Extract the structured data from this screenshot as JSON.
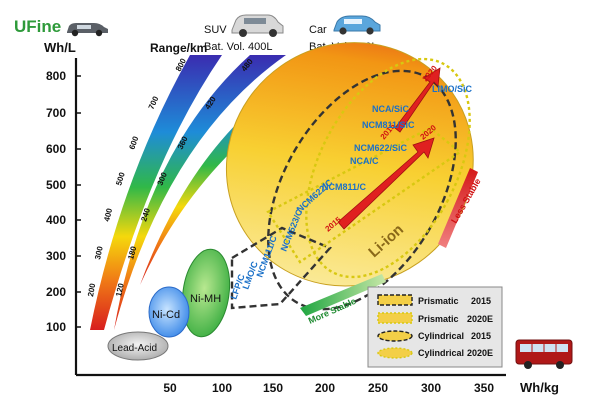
{
  "brand": {
    "logo_text": "UFine"
  },
  "axes": {
    "y_unit": "Wh/L",
    "x_unit": "Wh/kg",
    "y_ticks": [
      "800",
      "700",
      "600",
      "500",
      "400",
      "300",
      "200",
      "100"
    ],
    "x_ticks": [
      "50",
      "100",
      "150",
      "200",
      "250",
      "300",
      "350"
    ]
  },
  "header": {
    "range_label": "Range/km",
    "suv_label": "SUV",
    "suv_vol": "Bat. Vol. 400L",
    "car_label": "Car",
    "car_vol": "Bat. Vol. 220L"
  },
  "range_band_1": [
    "800",
    "700",
    "600",
    "500",
    "400",
    "300",
    "200"
  ],
  "range_band_2": [
    "480",
    "420",
    "360",
    "300",
    "240",
    "180",
    "120"
  ],
  "range_band_3": [
    "480"
  ],
  "technologies": {
    "lead_acid": "Lead-Acid",
    "ni_cd": "Ni-Cd",
    "ni_mh": "Ni-MH",
    "li_ion": "Li-ion"
  },
  "chemistries": {
    "limo": "LIMO/SiC",
    "nca_sic": "NCA/SiC",
    "ncm811_sic": "NCM811/SiC",
    "ncm622_sic": "NCM622/SiC",
    "nca_c": "NCA/C",
    "ncm811_c": "NCM811/C",
    "ncm622_c": "NCM622/C",
    "ncm523_c": "NCM523/C",
    "ncm111_c": "NCM111/C",
    "lmo_c": "LMO/C",
    "lfp_c": "LFP/C"
  },
  "years": {
    "y2015a": "2015",
    "y2015b": "2015",
    "y2020a": "2020",
    "y2020b": "2020"
  },
  "stability": {
    "less": "Less Stable",
    "more": "More Stable"
  },
  "legend": [
    {
      "name": "Prismatic",
      "year": "2015"
    },
    {
      "name": "Prismatic",
      "year": "2020E"
    },
    {
      "name": "Cylindrical",
      "year": "2015"
    },
    {
      "name": "Cylindrical",
      "year": "2020E"
    }
  ],
  "colors": {
    "accent_green": "#2e9a3a",
    "chem_text": "#1a70c8",
    "arrow_red": "#e02020"
  }
}
